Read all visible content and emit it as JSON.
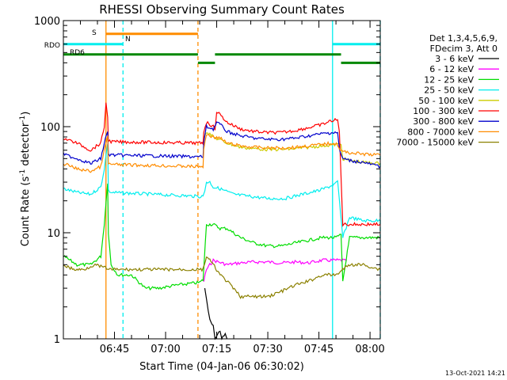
{
  "chart_data": {
    "type": "line",
    "title": "RHESSI Observing Summary Count Rates",
    "xlabel": "Start Time (04-Jan-06 06:30:02)",
    "ylabel_main": "Count Rate (s",
    "ylabel_sup1": "-1",
    "ylabel_mid": " detector",
    "ylabel_sup2": "-1",
    "ylabel_end": ")",
    "y_scale": "log",
    "ylim": [
      1,
      1000
    ],
    "xlim_minutes": [
      0,
      93
    ],
    "x_unit": "minutes after 06:30:02",
    "y_ticks": [
      {
        "value": 1,
        "label": "1"
      },
      {
        "value": 10,
        "label": "10"
      },
      {
        "value": 100,
        "label": "100"
      },
      {
        "value": 1000,
        "label": "1000"
      }
    ],
    "x_ticks": [
      {
        "minute": 15,
        "label": "06:45"
      },
      {
        "minute": 30,
        "label": "07:00"
      },
      {
        "minute": 45,
        "label": "07:15"
      },
      {
        "minute": 60,
        "label": "07:30"
      },
      {
        "minute": 75,
        "label": "07:45"
      },
      {
        "minute": 90,
        "label": "08:00"
      }
    ],
    "legend_header": [
      "Det 1,3,4,5,6,9,",
      "FDecim 3, Att 0"
    ],
    "legend_position": "right",
    "series": [
      {
        "name": "3 - 6 keV",
        "color": "#000000",
        "points": [
          [
            41.5,
            3
          ],
          [
            42,
            2.4
          ],
          [
            42.5,
            1.8
          ],
          [
            43,
            1.5
          ],
          [
            44,
            1.3
          ],
          [
            44.5,
            1
          ],
          [
            46,
            1.2
          ],
          [
            46.5,
            1
          ],
          [
            47.5,
            1.1
          ],
          [
            48,
            1
          ]
        ]
      },
      {
        "name": "6 - 12 keV",
        "color": "#ff00ff",
        "points": [
          [
            41.2,
            3.5
          ],
          [
            42,
            4.5
          ],
          [
            44,
            5.5
          ],
          [
            48,
            5
          ],
          [
            52,
            5.2
          ],
          [
            56,
            5.3
          ],
          [
            60,
            5.3
          ],
          [
            64,
            5.2
          ],
          [
            68,
            5.3
          ],
          [
            72,
            5.2
          ],
          [
            76,
            5.5
          ],
          [
            80,
            5.5
          ],
          [
            82,
            5.5
          ],
          [
            83,
            5.4
          ]
        ]
      },
      {
        "name": "12 - 25 keV",
        "color": "#00dd00",
        "points": [
          [
            0,
            6
          ],
          [
            4,
            5
          ],
          [
            8,
            5
          ],
          [
            11,
            6
          ],
          [
            12,
            12
          ],
          [
            13,
            30
          ],
          [
            13.2,
            10
          ],
          [
            14,
            5
          ],
          [
            16,
            4
          ],
          [
            20,
            4
          ],
          [
            24,
            3
          ],
          [
            28,
            3
          ],
          [
            33,
            3.2
          ],
          [
            40,
            3.4
          ],
          [
            41,
            3.6
          ],
          [
            42,
            12
          ],
          [
            44,
            12
          ],
          [
            46,
            11
          ],
          [
            48,
            11
          ],
          [
            52,
            9
          ],
          [
            56,
            8
          ],
          [
            60,
            7.5
          ],
          [
            64,
            7.5
          ],
          [
            68,
            8
          ],
          [
            72,
            8.5
          ],
          [
            76,
            9
          ],
          [
            80,
            9
          ],
          [
            81.5,
            9.5
          ],
          [
            82,
            3.5
          ],
          [
            84,
            9
          ],
          [
            90,
            9
          ],
          [
            93,
            9
          ]
        ]
      },
      {
        "name": "25 - 50 keV",
        "color": "#00eeee",
        "points": [
          [
            0,
            26
          ],
          [
            4,
            24
          ],
          [
            8,
            23
          ],
          [
            11,
            27
          ],
          [
            12,
            40
          ],
          [
            13,
            70
          ],
          [
            13.2,
            25
          ],
          [
            14,
            24
          ],
          [
            40,
            22
          ],
          [
            41,
            22
          ],
          [
            41.5,
            25
          ],
          [
            42,
            30
          ],
          [
            43,
            30
          ],
          [
            44,
            27
          ],
          [
            46,
            26
          ],
          [
            50,
            23
          ],
          [
            55,
            22
          ],
          [
            60,
            21
          ],
          [
            65,
            21
          ],
          [
            70,
            23
          ],
          [
            75,
            25
          ],
          [
            79,
            28
          ],
          [
            80.5,
            30
          ],
          [
            81,
            20
          ],
          [
            82,
            9
          ],
          [
            84,
            14
          ],
          [
            88,
            13
          ],
          [
            93,
            13
          ]
        ]
      },
      {
        "name": "50 - 100 keV",
        "color": "#cccc00",
        "points": [
          [
            41.2,
            80
          ],
          [
            42,
            90
          ],
          [
            44,
            80
          ],
          [
            48,
            70
          ],
          [
            52,
            64
          ],
          [
            56,
            62
          ],
          [
            60,
            61
          ],
          [
            64,
            61
          ],
          [
            68,
            62
          ],
          [
            72,
            64
          ],
          [
            76,
            66
          ],
          [
            80,
            68
          ],
          [
            81.5,
            68
          ],
          [
            82,
            50
          ],
          [
            84,
            48
          ],
          [
            88,
            46
          ],
          [
            93,
            45
          ]
        ]
      },
      {
        "name": "100 - 300 keV",
        "color": "#ff0000",
        "points": [
          [
            0,
            78
          ],
          [
            4,
            70
          ],
          [
            8,
            60
          ],
          [
            11,
            70
          ],
          [
            12,
            100
          ],
          [
            12.5,
            170
          ],
          [
            13,
            120
          ],
          [
            13.2,
            75
          ],
          [
            14,
            72
          ],
          [
            40,
            70
          ],
          [
            41,
            70
          ],
          [
            41.2,
            90
          ],
          [
            42,
            110
          ],
          [
            43,
            105
          ],
          [
            44,
            100
          ],
          [
            44.5,
            95
          ],
          [
            45,
            140
          ],
          [
            46,
            130
          ],
          [
            48,
            110
          ],
          [
            52,
            95
          ],
          [
            56,
            90
          ],
          [
            60,
            88
          ],
          [
            64,
            88
          ],
          [
            68,
            92
          ],
          [
            72,
            98
          ],
          [
            76,
            105
          ],
          [
            79,
            115
          ],
          [
            80.5,
            115
          ],
          [
            81,
            90
          ],
          [
            82,
            12
          ],
          [
            84,
            12
          ],
          [
            88,
            12
          ],
          [
            93,
            12
          ]
        ]
      },
      {
        "name": "300 - 800 keV",
        "color": "#0000cc",
        "points": [
          [
            0,
            55
          ],
          [
            4,
            50
          ],
          [
            8,
            45
          ],
          [
            11,
            50
          ],
          [
            12,
            70
          ],
          [
            13,
            90
          ],
          [
            13.2,
            55
          ],
          [
            14,
            54
          ],
          [
            40,
            52
          ],
          [
            41,
            52
          ],
          [
            41.2,
            70
          ],
          [
            42,
            100
          ],
          [
            44,
            95
          ],
          [
            45,
            110
          ],
          [
            46,
            105
          ],
          [
            48,
            90
          ],
          [
            52,
            82
          ],
          [
            56,
            78
          ],
          [
            60,
            76
          ],
          [
            64,
            76
          ],
          [
            68,
            78
          ],
          [
            72,
            82
          ],
          [
            76,
            86
          ],
          [
            79,
            88
          ],
          [
            80.5,
            88
          ],
          [
            81,
            60
          ],
          [
            82,
            50
          ],
          [
            84,
            48
          ],
          [
            88,
            46
          ],
          [
            93,
            42
          ]
        ]
      },
      {
        "name": "800 - 7000 keV",
        "color": "#ff8c00",
        "points": [
          [
            0,
            45
          ],
          [
            4,
            40
          ],
          [
            8,
            38
          ],
          [
            11,
            42
          ],
          [
            12,
            60
          ],
          [
            13,
            80
          ],
          [
            13.2,
            45
          ],
          [
            14,
            44
          ],
          [
            40,
            42
          ],
          [
            41,
            42
          ],
          [
            41.2,
            60
          ],
          [
            42,
            85
          ],
          [
            44,
            80
          ],
          [
            46,
            78
          ],
          [
            48,
            70
          ],
          [
            52,
            66
          ],
          [
            56,
            64
          ],
          [
            60,
            63
          ],
          [
            64,
            63
          ],
          [
            68,
            64
          ],
          [
            72,
            66
          ],
          [
            76,
            68
          ],
          [
            79,
            70
          ],
          [
            80.5,
            68
          ],
          [
            81,
            62
          ],
          [
            82,
            58
          ],
          [
            84,
            57
          ],
          [
            88,
            55
          ],
          [
            93,
            54
          ]
        ]
      },
      {
        "name": "7000 - 15000 keV",
        "color": "#8b8000",
        "points": [
          [
            0,
            5
          ],
          [
            3,
            4.5
          ],
          [
            6,
            4.5
          ],
          [
            9,
            5
          ],
          [
            11,
            4.8
          ],
          [
            14,
            4.5
          ],
          [
            40,
            4.5
          ],
          [
            41,
            4.5
          ],
          [
            42,
            6
          ],
          [
            44,
            5
          ],
          [
            46,
            4
          ],
          [
            48,
            3.5
          ],
          [
            52,
            2.5
          ],
          [
            56,
            2.5
          ],
          [
            60,
            2.5
          ],
          [
            64,
            2.8
          ],
          [
            68,
            3.2
          ],
          [
            72,
            3.5
          ],
          [
            76,
            4
          ],
          [
            80,
            4
          ],
          [
            82,
            4.5
          ],
          [
            84,
            5
          ],
          [
            88,
            5
          ],
          [
            93,
            4.5
          ]
        ]
      }
    ],
    "vertical_lines": [
      {
        "minute": 12.5,
        "color": "#ff8c00",
        "dashed": false
      },
      {
        "minute": 17.5,
        "color": "#00eeee",
        "dashed": true
      },
      {
        "minute": 39.5,
        "color": "#ff8c00",
        "dashed": true
      },
      {
        "minute": 79,
        "color": "#00eeee",
        "dashed": false
      },
      {
        "minute": 93,
        "color": "#00eeee",
        "dashed": true
      }
    ],
    "flag_bars": [
      {
        "label": "S",
        "color": "#ff8c00",
        "y": 750,
        "segments": [
          [
            12.5,
            39.5
          ]
        ]
      },
      {
        "label": "N",
        "color": "#00eeee",
        "y": 600,
        "segments": [
          [
            0,
            17.5
          ],
          [
            79,
            93
          ]
        ]
      },
      {
        "label": "RDO",
        "color": "#008800",
        "y": 480,
        "segments": [
          [
            0,
            39.5
          ],
          [
            44.5,
            81.5
          ]
        ]
      },
      {
        "label": "RD6",
        "color": "#008800",
        "y": 400,
        "segments": [
          [
            39.5,
            44.5
          ],
          [
            81.5,
            93
          ]
        ]
      }
    ]
  },
  "timestamp": "13-Oct-2021 14:21"
}
